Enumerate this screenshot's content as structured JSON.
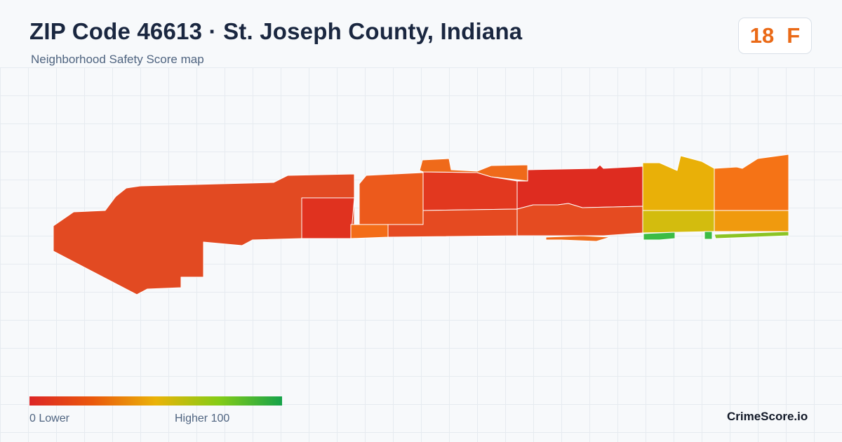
{
  "header": {
    "title": "ZIP Code 46613 · St. Joseph County, Indiana",
    "subtitle": "Neighborhood Safety Score map"
  },
  "score": {
    "value": "18",
    "grade": "F",
    "color": "#ea6a17"
  },
  "map": {
    "regions": [
      {
        "name": "region-west-large",
        "color": "#e24a22"
      },
      {
        "name": "region-west-center",
        "color": "#e0321f"
      },
      {
        "name": "region-center-north",
        "color": "#ec5a1c"
      },
      {
        "name": "region-center-south-strip",
        "color": "#f36d18"
      },
      {
        "name": "region-mid-north",
        "color": "#e2381f"
      },
      {
        "name": "region-mid-south",
        "color": "#e54a21"
      },
      {
        "name": "region-mid-top",
        "color": "#ef6a1a"
      },
      {
        "name": "region-east-red",
        "color": "#de2c20"
      },
      {
        "name": "region-east-south",
        "color": "#e54b21"
      },
      {
        "name": "region-east-strip",
        "color": "#ef6a1a"
      },
      {
        "name": "region-yellow-north",
        "color": "#e9b008"
      },
      {
        "name": "region-yellow-south",
        "color": "#d3bc0e"
      },
      {
        "name": "region-green-strip",
        "color": "#3cbc45"
      },
      {
        "name": "region-far-east",
        "color": "#f57316"
      },
      {
        "name": "region-far-east-south",
        "color": "#f09a0e"
      },
      {
        "name": "region-far-east-green",
        "color": "#8bc424"
      }
    ]
  },
  "legend": {
    "left_label": "0  Lower",
    "right_label": "Higher  100",
    "colors": [
      "#dc2626",
      "#ea580c",
      "#eab308",
      "#84cc16",
      "#16a34a"
    ]
  },
  "brand": "CrimeScore.io"
}
